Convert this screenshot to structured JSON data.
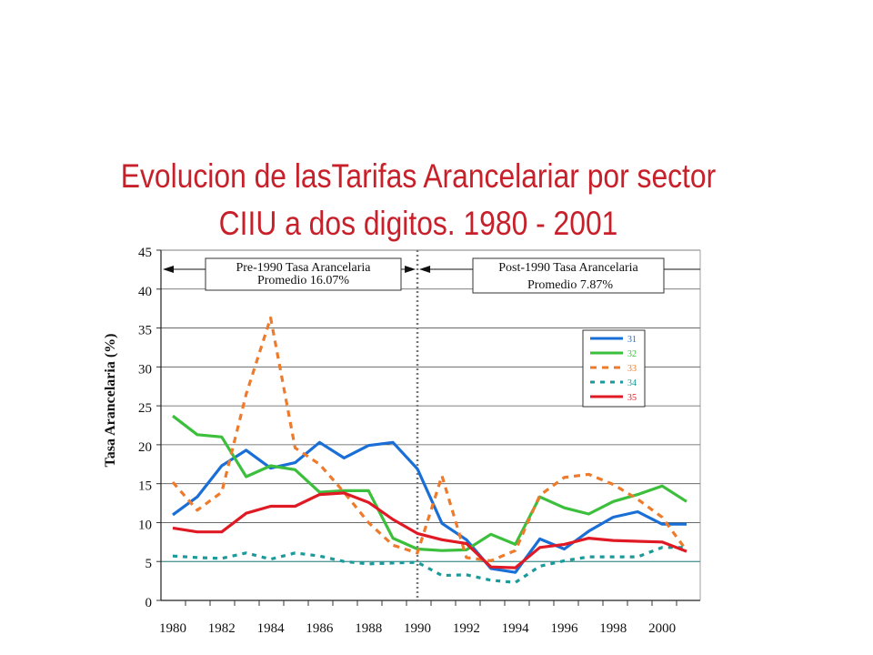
{
  "title_line1": "Evolucion de lasTarifas Arancelariar por sector",
  "title_line2": "CIIU a dos digitos. 1980 - 2001",
  "chart_data": {
    "type": "line",
    "ylabel": "Tasa Arancelaria  (%)",
    "xlabel": "",
    "ylim": [
      0,
      45
    ],
    "yticks": [
      0,
      5,
      10,
      15,
      20,
      25,
      30,
      35,
      40,
      45
    ],
    "xlim": [
      1980,
      2002
    ],
    "xticks": [
      1980,
      1982,
      1984,
      1986,
      1988,
      1990,
      1992,
      1994,
      1996,
      1998,
      2000
    ],
    "grid": "horizontal",
    "legend_position": "right",
    "reference_line": 5,
    "divider_year": 1990,
    "annotations": [
      {
        "line1": "Pre-1990 Tasa Arancelaria",
        "line2": "Promedio 16.07%"
      },
      {
        "line1": "Post-1990 Tasa Arancelaria",
        "line2": "Promedio 7.87%"
      }
    ],
    "x": [
      1980,
      1981,
      1982,
      1983,
      1984,
      1985,
      1986,
      1987,
      1988,
      1989,
      1990,
      1991,
      1992,
      1993,
      1994,
      1995,
      1996,
      1997,
      1998,
      1999,
      2000,
      2001
    ],
    "series": [
      {
        "name": "31",
        "color": "#1a6fd6",
        "dash": "solid",
        "values": [
          11.0,
          13.3,
          17.3,
          19.3,
          17.0,
          17.7,
          20.3,
          18.3,
          19.9,
          20.3,
          16.9,
          9.9,
          7.8,
          4.1,
          3.6,
          7.9,
          6.6,
          8.9,
          10.7,
          11.4,
          9.8,
          9.8
        ]
      },
      {
        "name": "32",
        "color": "#3cbf3c",
        "dash": "solid",
        "values": [
          23.7,
          21.3,
          21.0,
          15.9,
          17.3,
          16.8,
          13.9,
          14.1,
          14.1,
          8.0,
          6.6,
          6.4,
          6.5,
          8.5,
          7.2,
          13.3,
          11.9,
          11.1,
          12.7,
          13.6,
          14.7,
          12.7
        ]
      },
      {
        "name": "33",
        "color": "#ee7a2c",
        "dash": "dash",
        "values": [
          15.2,
          11.6,
          13.9,
          26.5,
          36.3,
          19.6,
          17.5,
          13.9,
          10.0,
          7.1,
          6.1,
          16.0,
          5.5,
          5.1,
          6.4,
          13.5,
          15.8,
          16.2,
          14.9,
          13.0,
          10.7,
          6.4
        ]
      },
      {
        "name": "34",
        "color": "#1a9a9a",
        "dash": "dot",
        "values": [
          5.7,
          5.5,
          5.4,
          6.1,
          5.3,
          6.1,
          5.7,
          5.0,
          4.7,
          4.8,
          4.9,
          3.2,
          3.3,
          2.6,
          2.3,
          4.4,
          5.1,
          5.6,
          5.6,
          5.6,
          6.8,
          6.8
        ]
      },
      {
        "name": "35",
        "color": "#e01a24",
        "dash": "solid",
        "values": [
          9.3,
          8.8,
          8.8,
          11.2,
          12.1,
          12.1,
          13.6,
          13.8,
          12.6,
          10.4,
          8.6,
          7.8,
          7.3,
          4.3,
          4.2,
          6.8,
          7.2,
          8.0,
          7.7,
          7.6,
          7.5,
          6.3
        ]
      }
    ]
  }
}
